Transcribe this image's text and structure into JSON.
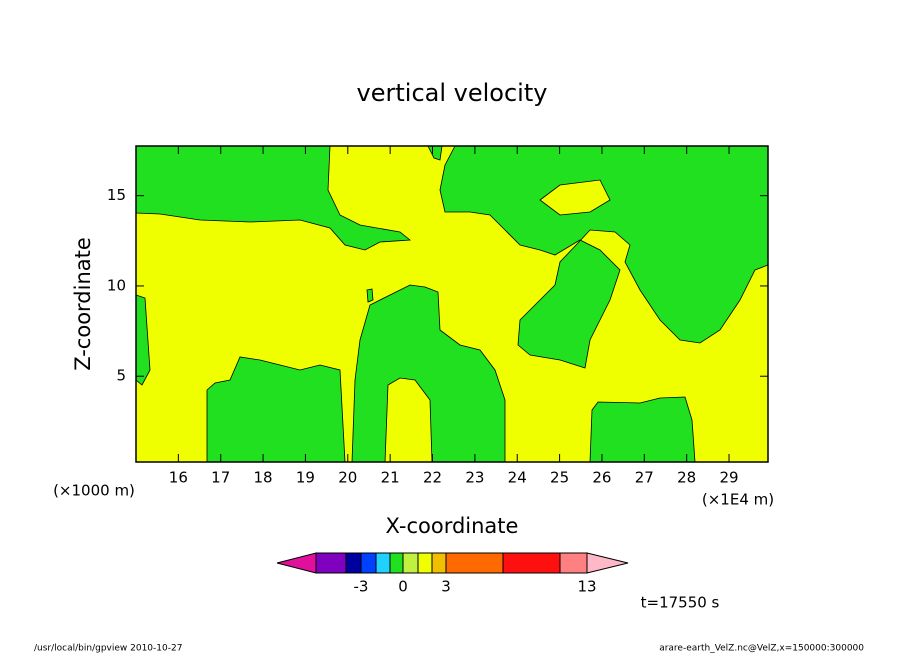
{
  "chart_data": {
    "type": "contour",
    "title": "vertical velocity",
    "xlabel": "X-coordinate",
    "ylabel": "Z-coordinate",
    "xunit": "(×1E4 m)",
    "yunit": "(×1000 m)",
    "xlim": [
      15,
      29.92
    ],
    "ylim": [
      0.25,
      17.75
    ],
    "xticks": [
      16,
      17,
      18,
      19,
      20,
      21,
      22,
      23,
      24,
      25,
      26,
      27,
      28,
      29
    ],
    "yticks": [
      5,
      10,
      15
    ],
    "colorbar": {
      "colors": [
        "#e0109c",
        "#8000c0",
        "#0000a0",
        "#0040ff",
        "#20d0ff",
        "#20e020",
        "#c0f040",
        "#f0ff00",
        "#f0c000",
        "#ff6a00",
        "#ff1010",
        "#ff8080",
        "#ffb8c8"
      ],
      "ticks": [
        -3,
        0,
        3,
        13
      ]
    },
    "annotation": "t=17550 s",
    "footer_left": "/usr/local/bin/gpview   2010-10-27",
    "footer_right": "arare-earth_VelZ.nc@VelZ,x=150000:300000"
  }
}
